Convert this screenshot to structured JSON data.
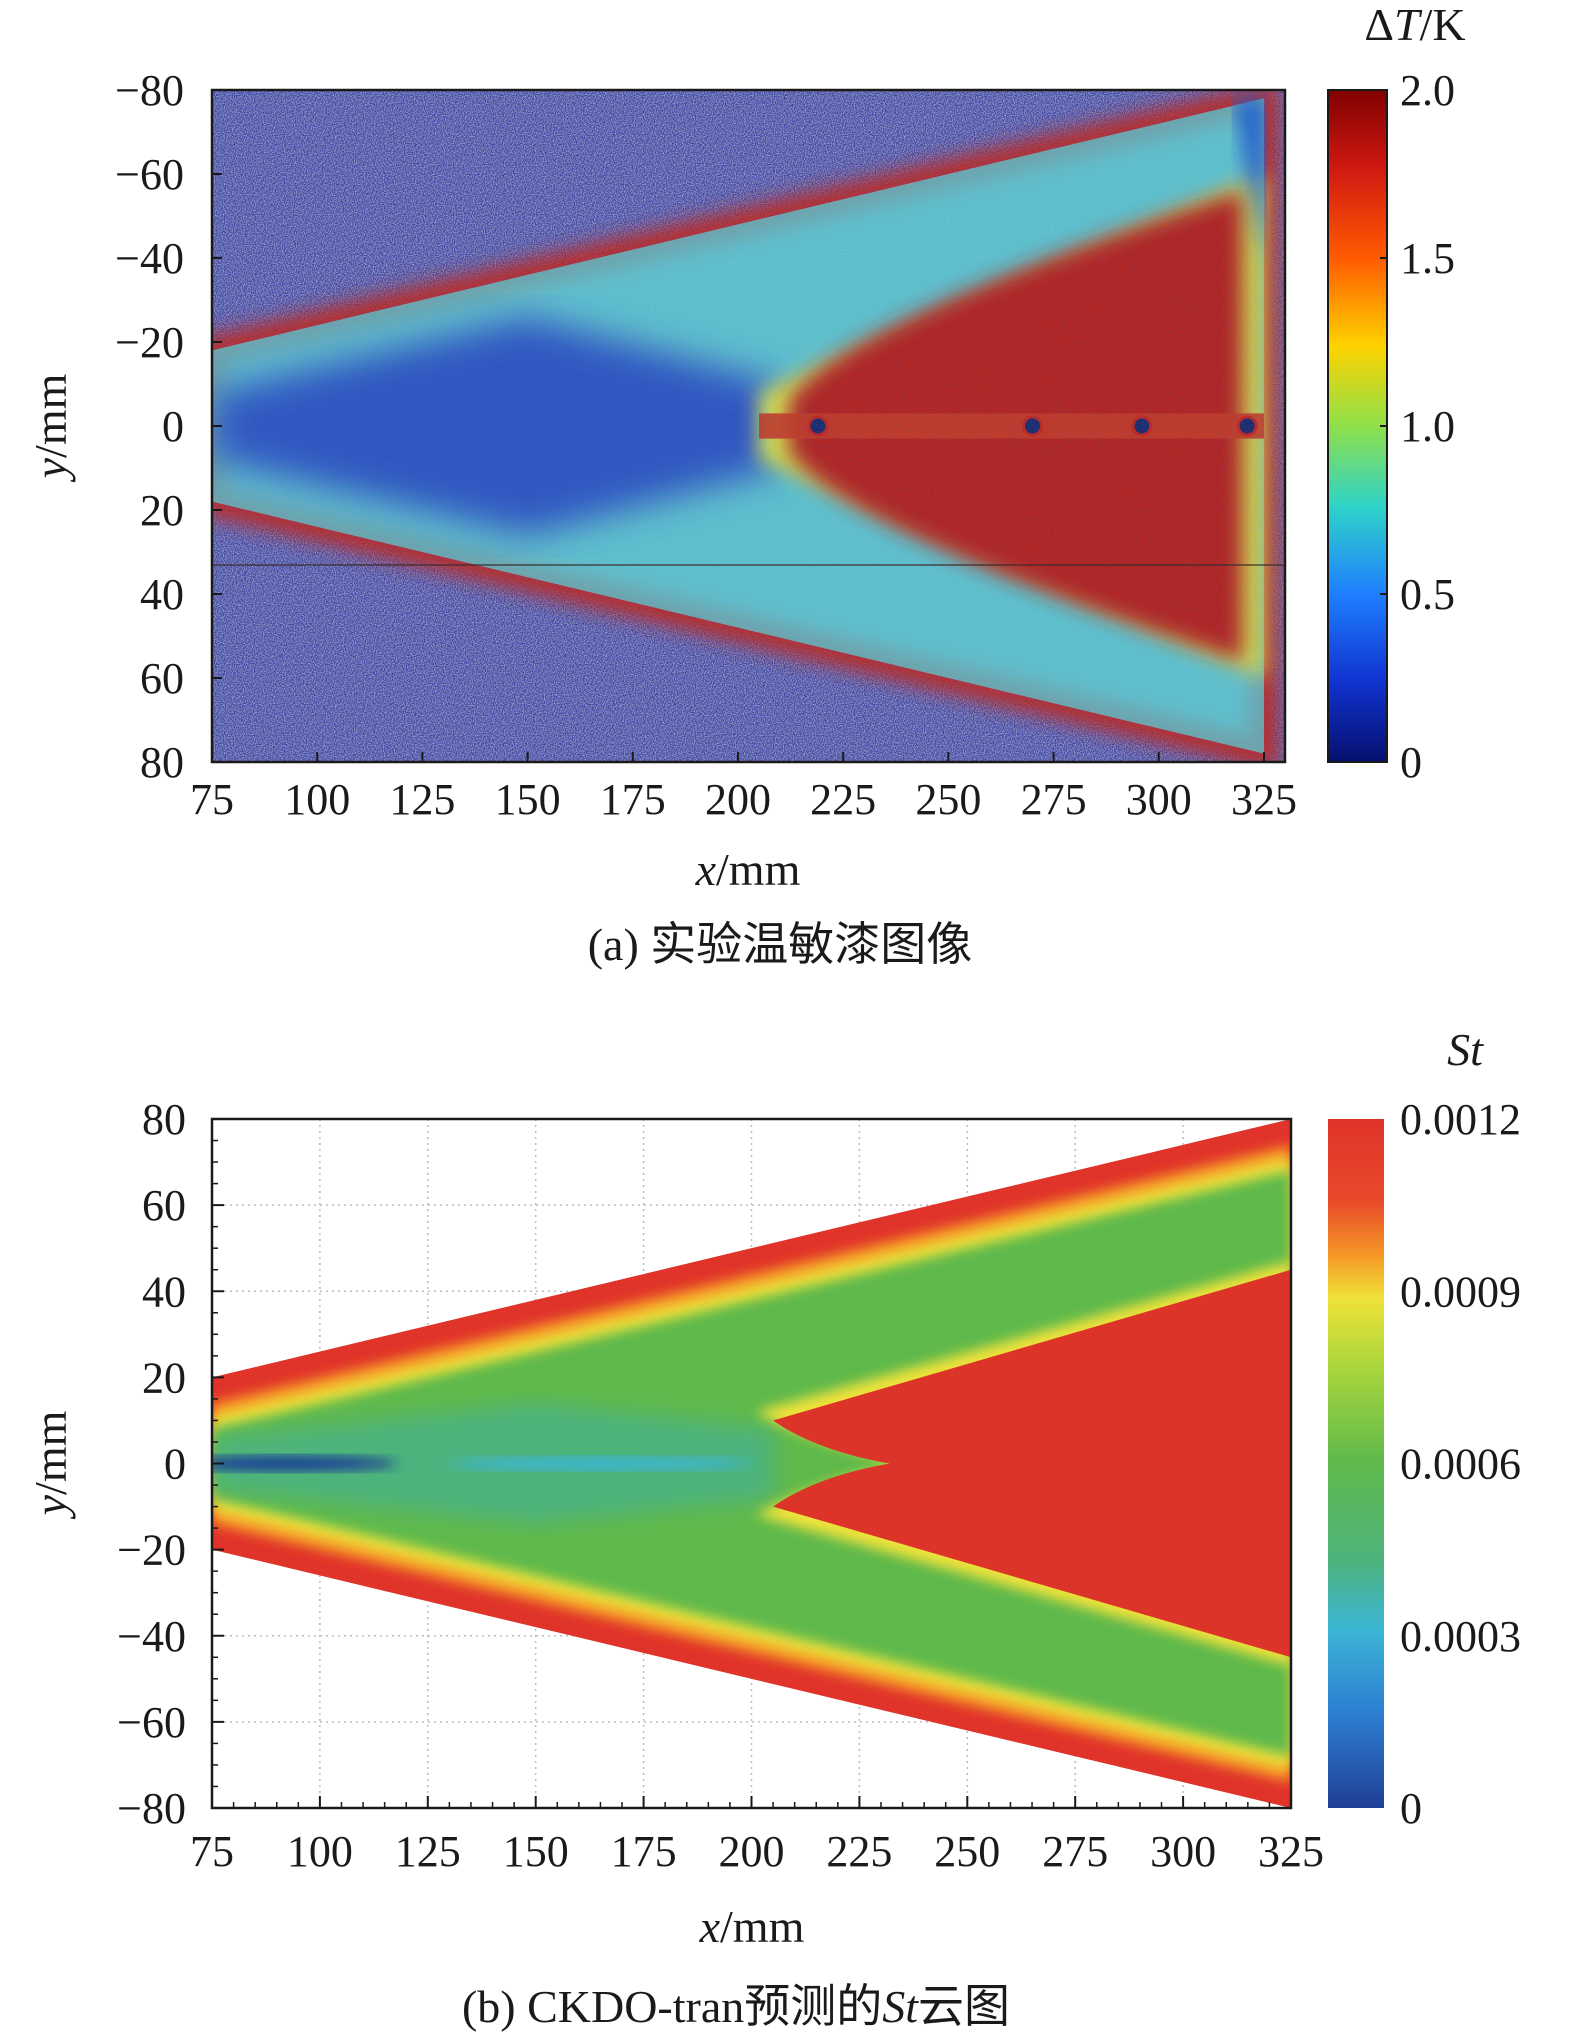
{
  "panels": [
    {
      "id": "a",
      "caption": "(a) 实验温敏漆图像",
      "chart_data": {
        "type": "heatmap",
        "title": "(a) 实验温敏漆图像",
        "xlabel": {
          "var": "x",
          "unit": "/mm"
        },
        "ylabel": {
          "var": "y",
          "unit": "/mm"
        },
        "xlim": [
          75,
          330
        ],
        "ylim": [
          -80,
          80
        ],
        "y_direction": "down",
        "xticks": [
          "75",
          "100",
          "125",
          "150",
          "175",
          "200",
          "225",
          "250",
          "275",
          "300",
          "325"
        ],
        "xtick_values": [
          75,
          100,
          125,
          150,
          175,
          200,
          225,
          250,
          275,
          300,
          325
        ],
        "yticks": [
          "−80",
          "−60",
          "−40",
          "−20",
          "0",
          "20",
          "40",
          "60",
          "80"
        ],
        "ytick_values": [
          -80,
          -60,
          -40,
          -20,
          0,
          20,
          40,
          60,
          80
        ],
        "colorbar": {
          "label_prefix": "Δ",
          "label_var": "T",
          "label_unit": "/K",
          "ticks": [
            "2.0",
            "1.5",
            "1.0",
            "0.5",
            "0"
          ],
          "tick_values": [
            2.0,
            1.5,
            1.0,
            0.5,
            0
          ],
          "range": [
            0,
            2.0
          ],
          "colormap": "jet"
        },
        "grid": false,
        "description_values": {
          "plate_leading_edge_x": 75,
          "plate_trailing_edge_x": 325,
          "plate_half_width_at_leading_edge": 18,
          "plate_half_width_at_trailing_edge": 78,
          "transition_front_x": 210,
          "hot_lobe_value": 1.9,
          "cold_core_value": 0.2
        }
      }
    },
    {
      "id": "b",
      "caption_prefix": "(b) CKDO-tran预测的",
      "caption_var": "St",
      "caption_suffix": "云图",
      "chart_data": {
        "type": "heatmap",
        "title": "(b) CKDO-tran预测的St云图",
        "xlabel": {
          "var": "x",
          "unit": "/mm"
        },
        "ylabel": {
          "var": "y",
          "unit": "/mm"
        },
        "xlim": [
          75,
          325
        ],
        "ylim": [
          -80,
          80
        ],
        "y_direction": "up",
        "xticks": [
          "75",
          "100",
          "125",
          "150",
          "175",
          "200",
          "225",
          "250",
          "275",
          "300",
          "325"
        ],
        "xtick_values": [
          75,
          100,
          125,
          150,
          175,
          200,
          225,
          250,
          275,
          300,
          325
        ],
        "yticks": [
          "80",
          "60",
          "40",
          "20",
          "0",
          "−20",
          "−40",
          "−60",
          "−80"
        ],
        "ytick_values": [
          80,
          60,
          40,
          20,
          0,
          -20,
          -40,
          -60,
          -80
        ],
        "colorbar": {
          "label_var": "St",
          "ticks": [
            "0.0012",
            "0.0009",
            "0.0006",
            "0.0003",
            "0"
          ],
          "tick_values": [
            0.0012,
            0.0009,
            0.0006,
            0.0003,
            0
          ],
          "range": [
            0,
            0.0012
          ],
          "colormap": "jet"
        },
        "grid": true,
        "description_values": {
          "plate_half_width_at_leading_edge": 20,
          "plate_half_width_at_trailing_edge": 80,
          "transition_front_x": 205,
          "transition_tip_x": 232,
          "inner_wedge_half_width_at_trailing_edge": 45
        }
      }
    }
  ],
  "colors": {
    "jet": [
      "#00007f",
      "#0000ff",
      "#007fff",
      "#00ffff",
      "#7fff7f",
      "#ffff00",
      "#ff7f00",
      "#ff0000",
      "#7f0000"
    ],
    "st_map": [
      "#1f3f95",
      "#2f7fd0",
      "#3cb0d8",
      "#58b98a",
      "#5fb94c",
      "#a7d83a",
      "#e8e83a",
      "#f5a623",
      "#e8392a",
      "#d9322a"
    ],
    "plate_green": "#5ab552",
    "plate_red": "#e53a2a",
    "psp_red": "#b3241e",
    "psp_blue": "#2a4ca8"
  }
}
